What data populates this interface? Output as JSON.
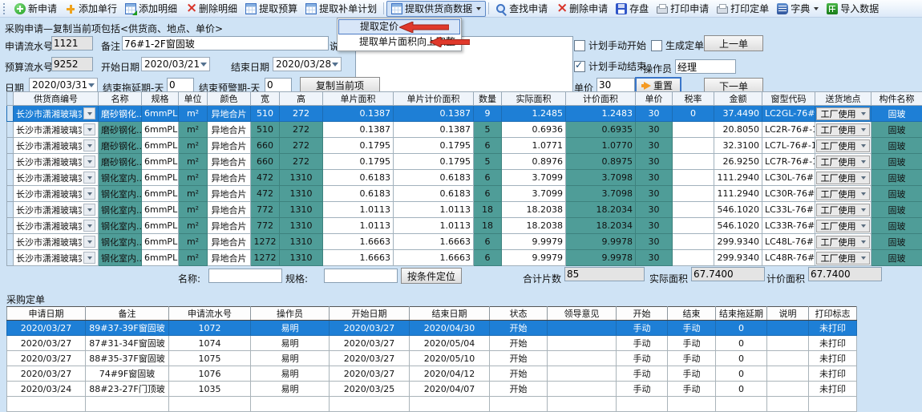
{
  "colors": {
    "selection_blue": "#1e7fd6",
    "cell_teal": "#4f9d98",
    "panel_blue": "#cfe3f5",
    "menu_highlight": "#d8e6f8",
    "arrow_red": "#e0392b"
  },
  "toolbar": {
    "items": [
      {
        "id": "new-request",
        "label": "新申请",
        "icon": "new-request-icon"
      },
      {
        "id": "add-row",
        "label": "添加单行",
        "icon": "add-row-icon"
      },
      {
        "id": "add-detail",
        "label": "添加明细",
        "icon": "add-detail-icon"
      },
      {
        "id": "delete-detail",
        "label": "删除明细",
        "icon": "delete-x-icon"
      },
      {
        "id": "extract-budget",
        "label": "提取预算",
        "icon": "table-grid-icon"
      },
      {
        "id": "extract-supplement-plan",
        "label": "提取补单计划",
        "icon": "table-grid-icon"
      },
      {
        "id": "extract-supplier-data",
        "label": "提取供货商数据",
        "icon": "table-grid-icon",
        "dropdown": true,
        "pressed": true,
        "divider_before": true
      },
      {
        "id": "find-request",
        "label": "查找申请",
        "icon": "search-icon",
        "divider_before": true
      },
      {
        "id": "delete-request",
        "label": "删除申请",
        "icon": "delete-x-icon"
      },
      {
        "id": "save",
        "label": "存盘",
        "icon": "save-icon"
      },
      {
        "id": "print-request",
        "label": "打印申请",
        "icon": "printer-icon"
      },
      {
        "id": "print-order",
        "label": "打印定单",
        "icon": "printer-icon"
      },
      {
        "id": "dictionary",
        "label": "字典",
        "icon": "dictionary-icon",
        "dropdown": true
      },
      {
        "id": "import-data",
        "label": "导入数据",
        "icon": "import-icon"
      }
    ]
  },
  "context_menu": {
    "items": [
      {
        "label": "提取定价",
        "highlighted": true
      },
      {
        "label": "提取单片面积向上取整",
        "highlighted": false
      }
    ]
  },
  "form": {
    "title": "采购申请—复制当前项包括<供货商、地点、单价>",
    "apply_no": {
      "label": "申请流水号",
      "value": "1121"
    },
    "remark": {
      "label": "备注",
      "value": "76#1-2F窗固玻"
    },
    "note": {
      "label": "说明",
      "value": ""
    },
    "budget_no": {
      "label": "预算流水号",
      "value": "9252"
    },
    "start_date": {
      "label": "开始日期",
      "value": "2020/03/21"
    },
    "end_date": {
      "label": "结束日期",
      "value": "2020/03/28"
    },
    "date": {
      "label": "日期",
      "value": "2020/03/31"
    },
    "end_delay": {
      "label": "结束拖延期-天",
      "value": "0"
    },
    "end_warn": {
      "label": "结束预警期-天",
      "value": "0"
    },
    "copy_button": "复制当前项",
    "cb_manual_start": {
      "label": "计划手动开始",
      "checked": false
    },
    "cb_gen_order": {
      "label": "生成定单",
      "checked": false
    },
    "cb_manual_end": {
      "label": "计划手动结束",
      "checked": true
    },
    "operator": {
      "label": "操作员",
      "value": "经理"
    },
    "unit_price": {
      "label": "单价",
      "value": "30"
    },
    "reset_button": "重置",
    "prev_button": "上一单",
    "next_button": "下一单"
  },
  "detail_table": {
    "headers": [
      "供货商编号",
      "名称",
      "规格",
      "单位",
      "颜色",
      "宽",
      "高",
      "单片面积",
      "单片计价面积",
      "数量",
      "实际面积",
      "计价面积",
      "单价",
      "税率",
      "金额",
      "窗型代码",
      "送货地点",
      "构件名称"
    ],
    "selected_row": 0,
    "rows": [
      [
        "长沙市潇湘玻璃实...",
        "磨砂钢化...",
        "6mmPLE...",
        "m²",
        "异地合片",
        "510",
        "272",
        "0.1387",
        "0.1387",
        "9",
        "1.2485",
        "1.2483",
        "30",
        "0",
        "37.4490",
        "LC2GL-76#...",
        "工厂使用",
        "固玻"
      ],
      [
        "长沙市潇湘玻璃实...",
        "磨砂钢化...",
        "6mmPLE...",
        "m²",
        "异地合片",
        "510",
        "272",
        "0.1387",
        "0.1387",
        "5",
        "0.6936",
        "0.6935",
        "30",
        "",
        "20.8050",
        "LC2R-76#-1F",
        "工厂使用",
        "固玻"
      ],
      [
        "长沙市潇湘玻璃实...",
        "磨砂钢化...",
        "6mmPLE...",
        "m²",
        "异地合片",
        "660",
        "272",
        "0.1795",
        "0.1795",
        "6",
        "1.0771",
        "1.0770",
        "30",
        "",
        "32.3100",
        "LC7L-76#-1FO",
        "工厂使用",
        "固玻"
      ],
      [
        "长沙市潇湘玻璃实...",
        "磨砂钢化...",
        "6mmPLE...",
        "m²",
        "异地合片",
        "660",
        "272",
        "0.1795",
        "0.1795",
        "5",
        "0.8976",
        "0.8975",
        "30",
        "",
        "26.9250",
        "LC7R-76#-1FO",
        "工厂使用",
        "固玻"
      ],
      [
        "长沙市潇湘玻璃实...",
        "钢化室内...",
        "6mmPLE...",
        "m²",
        "异地合片",
        "472",
        "1310",
        "0.6183",
        "0.6183",
        "6",
        "3.7099",
        "3.7098",
        "30",
        "",
        "111.2940",
        "LC30L-76#...",
        "工厂使用",
        "固玻"
      ],
      [
        "长沙市潇湘玻璃实...",
        "钢化室内...",
        "6mmPLE...",
        "m²",
        "异地合片",
        "472",
        "1310",
        "0.6183",
        "0.6183",
        "6",
        "3.7099",
        "3.7098",
        "30",
        "",
        "111.2940",
        "LC30R-76#...",
        "工厂使用",
        "固玻"
      ],
      [
        "长沙市潇湘玻璃实...",
        "钢化室内...",
        "6mmPLE...",
        "m²",
        "异地合片",
        "772",
        "1310",
        "1.0113",
        "1.0113",
        "18",
        "18.2038",
        "18.2034",
        "30",
        "",
        "546.1020",
        "LC33L-76#...",
        "工厂使用",
        "固玻"
      ],
      [
        "长沙市潇湘玻璃实...",
        "钢化室内...",
        "6mmPLE...",
        "m²",
        "异地合片",
        "772",
        "1310",
        "1.0113",
        "1.0113",
        "18",
        "18.2038",
        "18.2034",
        "30",
        "",
        "546.1020",
        "LC33R-76#...",
        "工厂使用",
        "固玻"
      ],
      [
        "长沙市潇湘玻璃实...",
        "钢化室内...",
        "6mmPLE...",
        "m²",
        "异地合片",
        "1272",
        "1310",
        "1.6663",
        "1.6663",
        "6",
        "9.9979",
        "9.9978",
        "30",
        "",
        "299.9340",
        "LC48L-76#...",
        "工厂使用",
        "固玻"
      ],
      [
        "长沙市潇湘玻璃实...",
        "钢化室内...",
        "6mmPLE...",
        "m²",
        "异地合片",
        "1272",
        "1310",
        "1.6663",
        "1.6663",
        "6",
        "9.9979",
        "9.9978",
        "30",
        "",
        "299.9340",
        "LC48R-76#...",
        "工厂使用",
        "固玻"
      ]
    ]
  },
  "filter_bar": {
    "name_label": "名称:",
    "name_value": "",
    "spec_label": "规格:",
    "spec_value": "",
    "locate_button": "按条件定位",
    "total_pieces": {
      "label": "合计片数",
      "value": "85"
    },
    "actual_area": {
      "label": "实际面积",
      "value": "67.7400"
    },
    "price_area": {
      "label": "计价面积",
      "value": "67.7400"
    }
  },
  "orders_section": {
    "title": "采购定单",
    "headers": [
      "申请日期",
      "备注",
      "申请流水号",
      "操作员",
      "开始日期",
      "结束日期",
      "状态",
      "领导意见",
      "开始",
      "结束",
      "结束拖延期",
      "说明",
      "打印标志"
    ],
    "selected_row": 0,
    "rows": [
      [
        "2020/03/27",
        "89#37-39F窗固玻",
        "1072",
        "易明",
        "2020/03/27",
        "2020/04/30",
        "开始",
        "",
        "手动",
        "手动",
        "0",
        "",
        "未打印"
      ],
      [
        "2020/03/27",
        "87#31-34F窗固玻",
        "1074",
        "易明",
        "2020/03/27",
        "2020/05/04",
        "开始",
        "",
        "手动",
        "手动",
        "0",
        "",
        "未打印"
      ],
      [
        "2020/03/27",
        "88#35-37F窗固玻",
        "1075",
        "易明",
        "2020/03/27",
        "2020/05/10",
        "开始",
        "",
        "手动",
        "手动",
        "0",
        "",
        "未打印"
      ],
      [
        "2020/03/27",
        "74#9F窗固玻",
        "1076",
        "易明",
        "2020/03/27",
        "2020/04/12",
        "开始",
        "",
        "手动",
        "手动",
        "0",
        "",
        "未打印"
      ],
      [
        "2020/03/24",
        "88#23-27F门顶玻",
        "1035",
        "易明",
        "2020/03/25",
        "2020/04/07",
        "开始",
        "",
        "手动",
        "手动",
        "0",
        "",
        "未打印"
      ]
    ]
  }
}
